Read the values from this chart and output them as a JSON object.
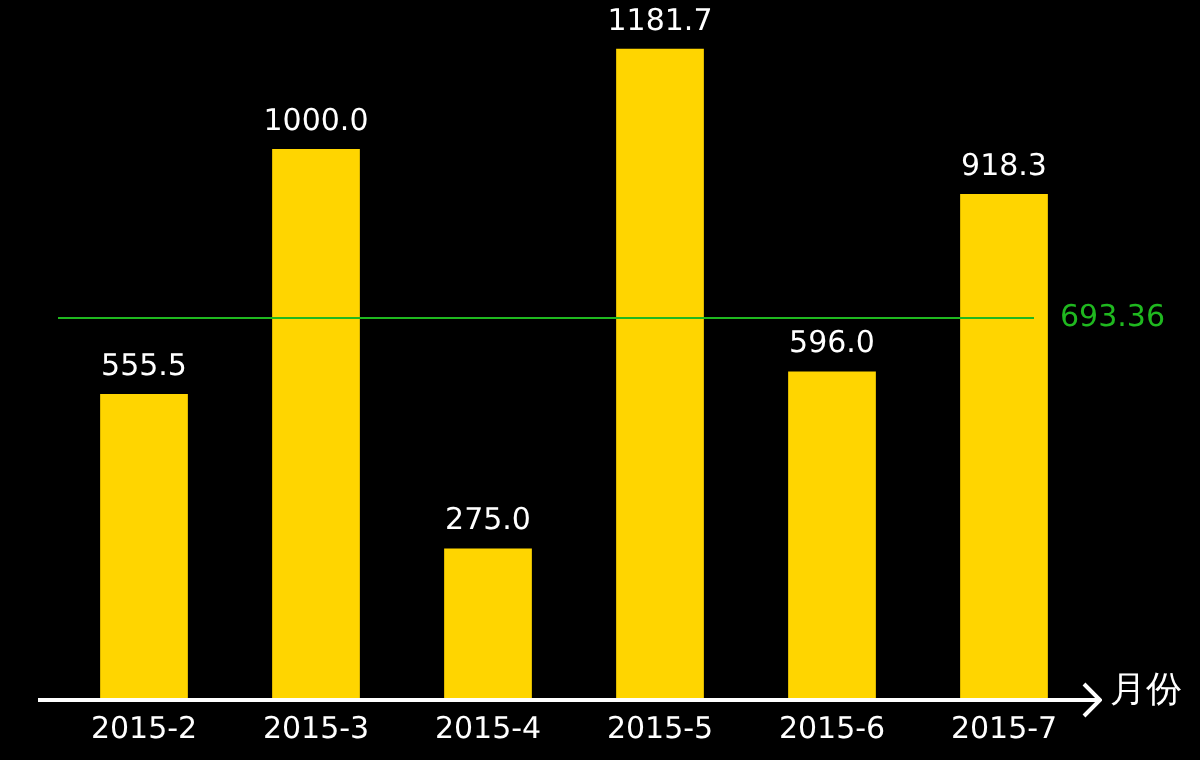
{
  "chart_data": {
    "type": "bar",
    "xlabel": "月份",
    "categories": [
      "2015-2",
      "2015-3",
      "2015-4",
      "2015-5",
      "2015-6",
      "2015-7"
    ],
    "values": [
      555.5,
      1000.0,
      275.0,
      1181.7,
      596.0,
      918.3
    ],
    "value_labels": [
      "555.5",
      "1000.0",
      "275.0",
      "1181.7",
      "596.0",
      "918.3"
    ],
    "color": "#ffd500",
    "ref_lines": [
      {
        "axis": "y",
        "value": 693.36,
        "label": "693.36",
        "color": "#1fb81f"
      }
    ],
    "legend": false
  }
}
